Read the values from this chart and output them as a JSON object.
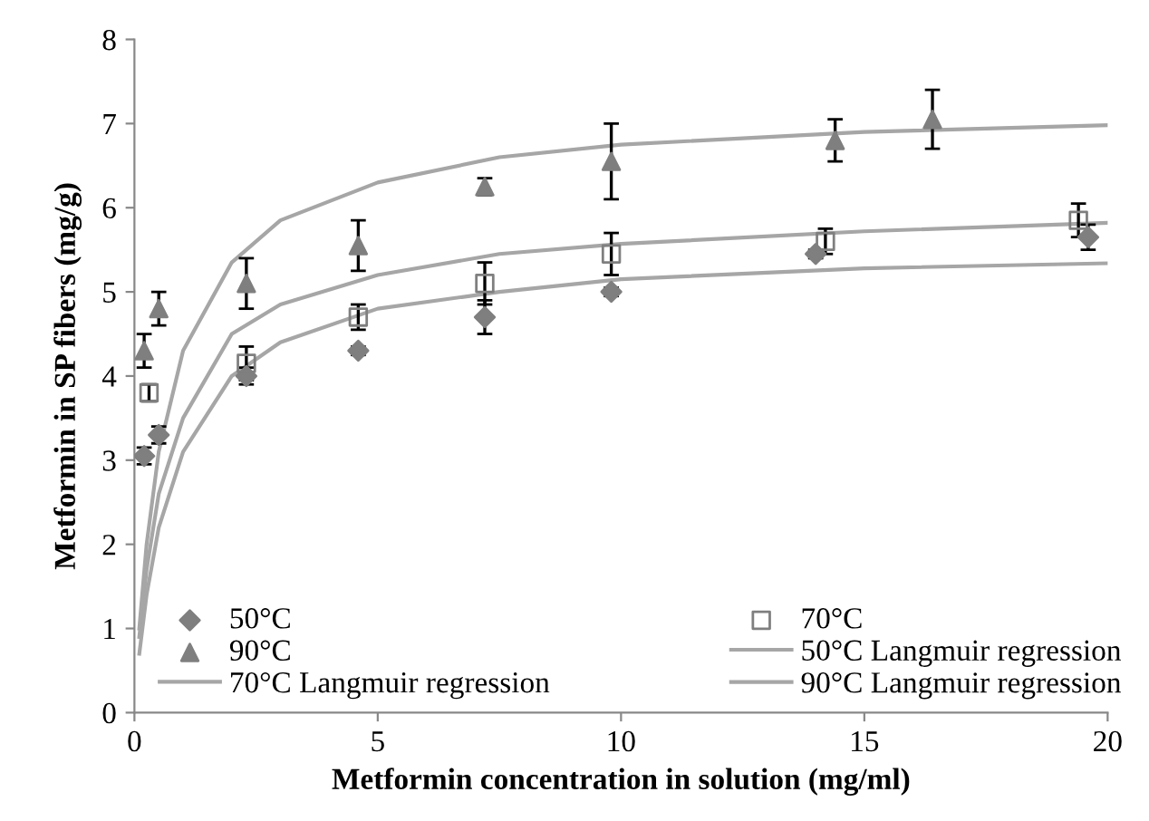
{
  "chart_data": {
    "type": "scatter",
    "xlabel": "Metformin concentration in solution (mg/ml)",
    "ylabel": "Metformin in SP fibers (mg/g)",
    "xlim": [
      0,
      20
    ],
    "xticks": [
      0,
      5,
      10,
      15,
      20
    ],
    "ylim": [
      0,
      8
    ],
    "yticks": [
      0,
      1,
      2,
      3,
      4,
      5,
      6,
      7,
      8
    ],
    "grid": false,
    "legend": "bottom",
    "series": [
      {
        "name": "50°C",
        "marker": "diamond",
        "color": "#7f7f7f",
        "x": [
          0.2,
          0.5,
          2.3,
          4.6,
          7.2,
          9.8,
          14,
          19.6
        ],
        "values": [
          3.05,
          3.3,
          4.0,
          4.3,
          4.7,
          5.0,
          5.45,
          5.65
        ],
        "errors": [
          0.1,
          0.1,
          0.1,
          0.05,
          0.2,
          0.05,
          0.05,
          0.15
        ]
      },
      {
        "name": "70°C",
        "marker": "square",
        "color": "#7f7f7f",
        "x": [
          0.3,
          2.3,
          4.6,
          7.2,
          9.8,
          14.2,
          19.4
        ],
        "values": [
          3.8,
          4.15,
          4.7,
          5.1,
          5.45,
          5.6,
          5.85
        ],
        "errors": [
          0.1,
          0.2,
          0.15,
          0.25,
          0.25,
          0.15,
          0.2
        ]
      },
      {
        "name": "90°C",
        "marker": "triangle",
        "color": "#7f7f7f",
        "x": [
          0.2,
          0.5,
          2.3,
          4.6,
          7.2,
          9.8,
          14.4,
          16.4
        ],
        "values": [
          4.3,
          4.8,
          5.1,
          5.55,
          6.25,
          6.55,
          6.8,
          7.05
        ],
        "errors": [
          0.2,
          0.2,
          0.3,
          0.3,
          0.1,
          0.45,
          0.25,
          0.35
        ]
      },
      {
        "name": "50°C Langmuir regression",
        "type": "line",
        "color": "#a6a6a6",
        "x": [
          0.1,
          0.25,
          0.5,
          1,
          2,
          3,
          5,
          7.5,
          10,
          15,
          20
        ],
        "values": [
          0.7,
          1.4,
          2.2,
          3.1,
          4.0,
          4.4,
          4.8,
          5.0,
          5.15,
          5.28,
          5.34
        ]
      },
      {
        "name": "70°C Langmuir regression",
        "type": "line",
        "color": "#a6a6a6",
        "x": [
          0.1,
          0.25,
          0.5,
          1,
          2,
          3,
          5,
          7.5,
          10,
          15,
          20
        ],
        "values": [
          0.9,
          1.7,
          2.6,
          3.5,
          4.5,
          4.85,
          5.2,
          5.45,
          5.57,
          5.72,
          5.82
        ]
      },
      {
        "name": "90°C Langmuir regression",
        "type": "line",
        "color": "#a6a6a6",
        "x": [
          0.1,
          0.25,
          0.5,
          1,
          2,
          3,
          5,
          7.5,
          10,
          15,
          20
        ],
        "values": [
          1.0,
          2.0,
          3.1,
          4.3,
          5.35,
          5.85,
          6.3,
          6.6,
          6.75,
          6.9,
          6.98
        ]
      }
    ]
  }
}
